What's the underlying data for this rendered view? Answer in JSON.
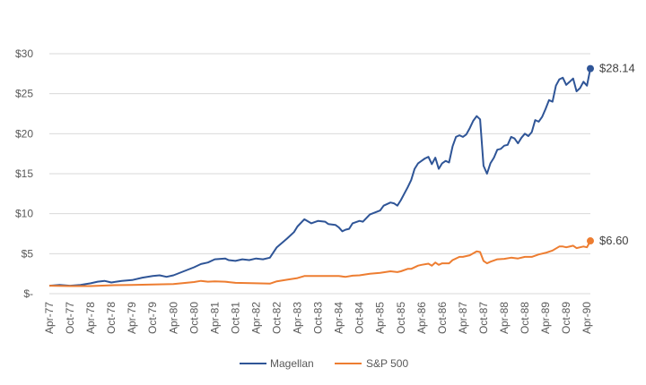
{
  "chart_data": {
    "type": "line",
    "x_tick_labels": [
      "Apr-77",
      "Oct-77",
      "Apr-78",
      "Oct-78",
      "Apr-79",
      "Oct-79",
      "Apr-80",
      "Oct-80",
      "Apr-81",
      "Oct-81",
      "Apr-82",
      "Oct-82",
      "Apr-83",
      "Oct-83",
      "Apr-84",
      "Oct-84",
      "Apr-85",
      "Oct-85",
      "Apr-86",
      "Oct-86",
      "Apr-87",
      "Oct-87",
      "Apr-88",
      "Oct-88",
      "Apr-89",
      "Oct-89",
      "Apr-90"
    ],
    "y_tick_labels": [
      "$-",
      "$5",
      "$10",
      "$15",
      "$20",
      "$25",
      "$30"
    ],
    "ylim": [
      0,
      30
    ],
    "grid": "horizontal",
    "legend_position": "bottom",
    "series": [
      {
        "name": "Magellan",
        "color": "#2f5597",
        "end_label": "$28.14",
        "points": [
          [
            "Apr-77",
            1.0
          ],
          [
            "Jul-77",
            1.1
          ],
          [
            "Oct-77",
            1.0
          ],
          [
            "Jan-78",
            1.1
          ],
          [
            "Apr-78",
            1.3
          ],
          [
            "Jun-78",
            1.5
          ],
          [
            "Aug-78",
            1.6
          ],
          [
            "Oct-78",
            1.4
          ],
          [
            "Jan-79",
            1.6
          ],
          [
            "Apr-79",
            1.7
          ],
          [
            "Jul-79",
            2.0
          ],
          [
            "Oct-79",
            2.2
          ],
          [
            "Dec-79",
            2.3
          ],
          [
            "Feb-80",
            2.1
          ],
          [
            "Apr-80",
            2.3
          ],
          [
            "Jul-80",
            2.8
          ],
          [
            "Oct-80",
            3.3
          ],
          [
            "Dec-80",
            3.7
          ],
          [
            "Feb-81",
            3.9
          ],
          [
            "Apr-81",
            4.3
          ],
          [
            "Jul-81",
            4.4
          ],
          [
            "Aug-81",
            4.2
          ],
          [
            "Oct-81",
            4.1
          ],
          [
            "Dec-81",
            4.3
          ],
          [
            "Feb-82",
            4.2
          ],
          [
            "Apr-82",
            4.4
          ],
          [
            "Jun-82",
            4.3
          ],
          [
            "Aug-82",
            4.5
          ],
          [
            "Oct-82",
            5.8
          ],
          [
            "Jan-83",
            6.9
          ],
          [
            "Mar-83",
            7.7
          ],
          [
            "Apr-83",
            8.4
          ],
          [
            "Jun-83",
            9.3
          ],
          [
            "Aug-83",
            8.8
          ],
          [
            "Oct-83",
            9.1
          ],
          [
            "Dec-83",
            9.0
          ],
          [
            "Jan-84",
            8.7
          ],
          [
            "Mar-84",
            8.6
          ],
          [
            "Apr-84",
            8.3
          ],
          [
            "May-84",
            7.8
          ],
          [
            "Jun-84",
            8.0
          ],
          [
            "Jul-84",
            8.1
          ],
          [
            "Aug-84",
            8.8
          ],
          [
            "Oct-84",
            9.1
          ],
          [
            "Nov-84",
            9.0
          ],
          [
            "Jan-85",
            9.9
          ],
          [
            "Apr-85",
            10.4
          ],
          [
            "May-85",
            11.0
          ],
          [
            "Jul-85",
            11.4
          ],
          [
            "Aug-85",
            11.3
          ],
          [
            "Sep-85",
            11.0
          ],
          [
            "Oct-85",
            11.7
          ],
          [
            "Nov-85",
            12.5
          ],
          [
            "Dec-85",
            13.3
          ],
          [
            "Jan-86",
            14.2
          ],
          [
            "Feb-86",
            15.6
          ],
          [
            "Mar-86",
            16.3
          ],
          [
            "Apr-86",
            16.6
          ],
          [
            "May-86",
            16.9
          ],
          [
            "Jun-86",
            17.1
          ],
          [
            "Jul-86",
            16.2
          ],
          [
            "Aug-86",
            17.0
          ],
          [
            "Sep-86",
            15.6
          ],
          [
            "Oct-86",
            16.3
          ],
          [
            "Nov-86",
            16.6
          ],
          [
            "Dec-86",
            16.4
          ],
          [
            "Jan-87",
            18.4
          ],
          [
            "Feb-87",
            19.6
          ],
          [
            "Mar-87",
            19.8
          ],
          [
            "Apr-87",
            19.6
          ],
          [
            "May-87",
            19.9
          ],
          [
            "Jun-87",
            20.7
          ],
          [
            "Jul-87",
            21.6
          ],
          [
            "Aug-87",
            22.2
          ],
          [
            "Sep-87",
            21.8
          ],
          [
            "Oct-87",
            16.0
          ],
          [
            "Nov-87",
            15.0
          ],
          [
            "Dec-87",
            16.3
          ],
          [
            "Jan-88",
            17.0
          ],
          [
            "Feb-88",
            18.0
          ],
          [
            "Mar-88",
            18.1
          ],
          [
            "Apr-88",
            18.5
          ],
          [
            "May-88",
            18.6
          ],
          [
            "Jun-88",
            19.6
          ],
          [
            "Jul-88",
            19.4
          ],
          [
            "Aug-88",
            18.8
          ],
          [
            "Sep-88",
            19.5
          ],
          [
            "Oct-88",
            20.0
          ],
          [
            "Nov-88",
            19.7
          ],
          [
            "Dec-88",
            20.2
          ],
          [
            "Jan-89",
            21.7
          ],
          [
            "Feb-89",
            21.5
          ],
          [
            "Mar-89",
            22.1
          ],
          [
            "Apr-89",
            23.1
          ],
          [
            "May-89",
            24.2
          ],
          [
            "Jun-89",
            24.0
          ],
          [
            "Jul-89",
            26.0
          ],
          [
            "Aug-89",
            26.8
          ],
          [
            "Sep-89",
            27.0
          ],
          [
            "Oct-89",
            26.1
          ],
          [
            "Nov-89",
            26.5
          ],
          [
            "Dec-89",
            26.9
          ],
          [
            "Jan-90",
            25.3
          ],
          [
            "Feb-90",
            25.7
          ],
          [
            "Mar-90",
            26.5
          ],
          [
            "Apr-90",
            26.0
          ],
          [
            "May-90",
            28.14
          ]
        ]
      },
      {
        "name": "S&P 500",
        "color": "#ed7d31",
        "end_label": "$6.60",
        "points": [
          [
            "Apr-77",
            1.0
          ],
          [
            "Oct-77",
            0.95
          ],
          [
            "Apr-78",
            0.95
          ],
          [
            "Oct-78",
            1.05
          ],
          [
            "Apr-79",
            1.1
          ],
          [
            "Oct-79",
            1.15
          ],
          [
            "Apr-80",
            1.2
          ],
          [
            "Oct-80",
            1.45
          ],
          [
            "Dec-80",
            1.6
          ],
          [
            "Feb-81",
            1.5
          ],
          [
            "Apr-81",
            1.55
          ],
          [
            "Jul-81",
            1.5
          ],
          [
            "Oct-81",
            1.35
          ],
          [
            "Apr-82",
            1.3
          ],
          [
            "Aug-82",
            1.25
          ],
          [
            "Oct-82",
            1.55
          ],
          [
            "Jan-83",
            1.75
          ],
          [
            "Apr-83",
            1.95
          ],
          [
            "Jun-83",
            2.2
          ],
          [
            "Oct-83",
            2.2
          ],
          [
            "Apr-84",
            2.2
          ],
          [
            "Jun-84",
            2.1
          ],
          [
            "Aug-84",
            2.25
          ],
          [
            "Oct-84",
            2.3
          ],
          [
            "Jan-85",
            2.5
          ],
          [
            "Apr-85",
            2.6
          ],
          [
            "Jul-85",
            2.8
          ],
          [
            "Sep-85",
            2.7
          ],
          [
            "Oct-85",
            2.8
          ],
          [
            "Dec-85",
            3.1
          ],
          [
            "Jan-86",
            3.1
          ],
          [
            "Mar-86",
            3.5
          ],
          [
            "Apr-86",
            3.6
          ],
          [
            "Jun-86",
            3.75
          ],
          [
            "Jul-86",
            3.5
          ],
          [
            "Aug-86",
            3.9
          ],
          [
            "Sep-86",
            3.6
          ],
          [
            "Oct-86",
            3.8
          ],
          [
            "Dec-86",
            3.8
          ],
          [
            "Jan-87",
            4.2
          ],
          [
            "Mar-87",
            4.6
          ],
          [
            "Apr-87",
            4.6
          ],
          [
            "Jun-87",
            4.8
          ],
          [
            "Aug-87",
            5.3
          ],
          [
            "Sep-87",
            5.2
          ],
          [
            "Oct-87",
            4.1
          ],
          [
            "Nov-87",
            3.8
          ],
          [
            "Dec-87",
            4.0
          ],
          [
            "Feb-88",
            4.3
          ],
          [
            "Apr-88",
            4.35
          ],
          [
            "Jun-88",
            4.5
          ],
          [
            "Aug-88",
            4.4
          ],
          [
            "Oct-88",
            4.6
          ],
          [
            "Dec-88",
            4.6
          ],
          [
            "Feb-89",
            4.9
          ],
          [
            "Apr-89",
            5.1
          ],
          [
            "Jun-89",
            5.4
          ],
          [
            "Aug-89",
            5.9
          ],
          [
            "Sep-89",
            5.9
          ],
          [
            "Oct-89",
            5.8
          ],
          [
            "Dec-89",
            6.0
          ],
          [
            "Jan-90",
            5.7
          ],
          [
            "Feb-90",
            5.8
          ],
          [
            "Mar-90",
            5.9
          ],
          [
            "Apr-90",
            5.8
          ],
          [
            "May-90",
            6.6
          ]
        ]
      }
    ]
  }
}
